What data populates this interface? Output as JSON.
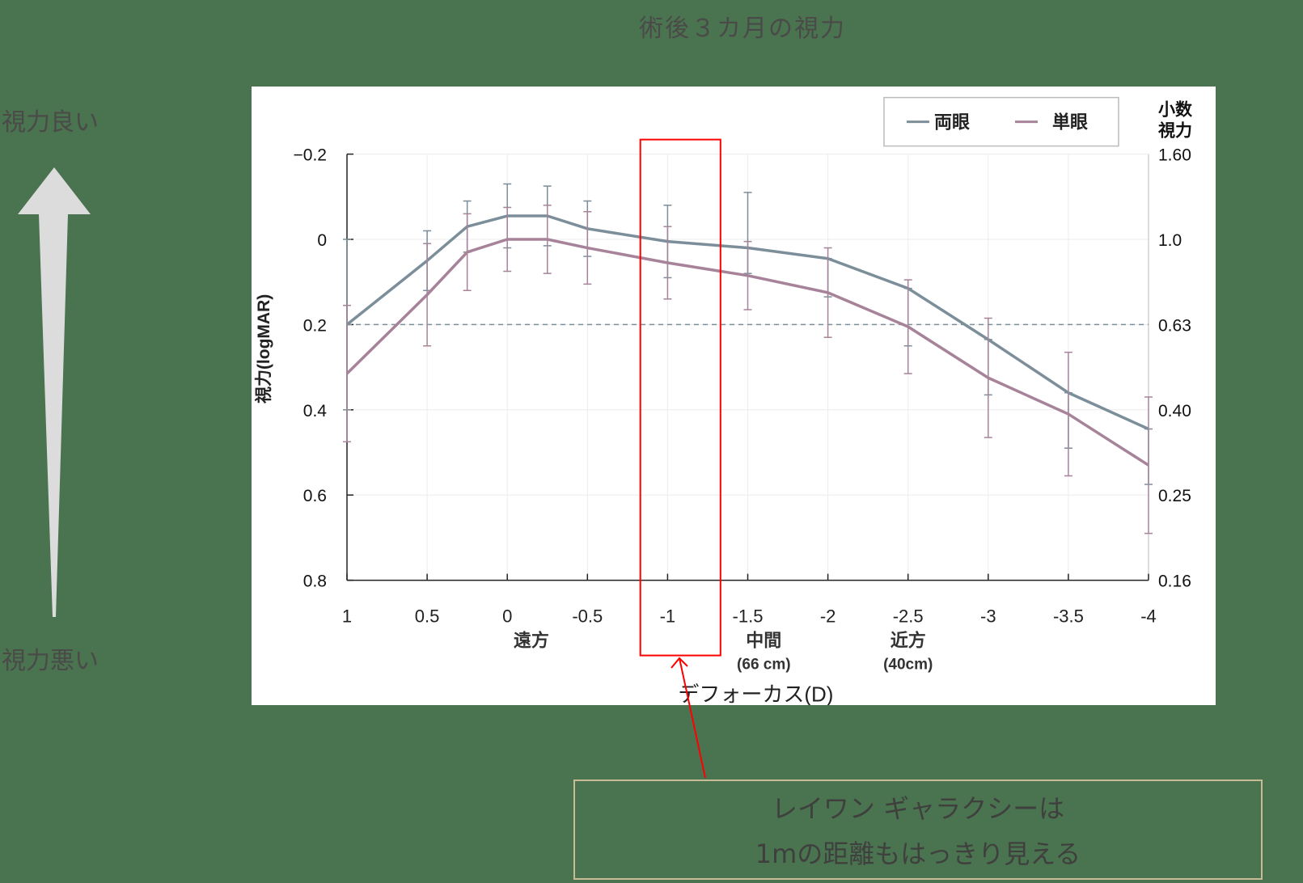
{
  "page": {
    "title": "術後３カ月の視力",
    "side_labels": {
      "top": "視力良い",
      "bottom": "視力悪い"
    },
    "callout_lines": [
      "レイワン ギャラクシーは",
      "1mの距離もはっきり見える"
    ]
  },
  "colors": {
    "background": "#4a7350",
    "binocular": "#7b8e9a",
    "monocular": "#a7839a",
    "highlight": "#ff0000",
    "arrow": "#dcdcdc"
  },
  "chart_data": {
    "type": "line",
    "title": "術後３カ月の視力",
    "xlabel": "デフォーカス(D)",
    "ylabel": "視力(logMAR)",
    "y2label": [
      "小数",
      "視力"
    ],
    "x_ticks": [
      "1",
      "0.5",
      "0",
      "-0.5",
      "-1",
      "-1.5",
      "-2",
      "-2.5",
      "-3",
      "-3.5",
      "-4"
    ],
    "x_ticks_values": [
      1,
      0.5,
      0,
      -0.5,
      -1,
      -1.5,
      -2,
      -2.5,
      -3,
      -3.5,
      -4
    ],
    "x_annotations": [
      {
        "x": -0.15,
        "lines": [
          "遠方"
        ]
      },
      {
        "x": -1.6,
        "lines": [
          "中間",
          "(66 cm)"
        ]
      },
      {
        "x": -2.5,
        "lines": [
          "近方",
          "(40cm)"
        ]
      }
    ],
    "y_ticks": [
      "−0.2",
      "0",
      "0.2",
      "0.4",
      "0.6",
      "0.8"
    ],
    "y_ticks_values": [
      -0.2,
      0,
      0.2,
      0.4,
      0.6,
      0.8
    ],
    "y2_ticks": [
      "1.60",
      "1.0",
      "0.63",
      "0.40",
      "0.25",
      "0.16"
    ],
    "ylim": [
      -0.2,
      0.8
    ],
    "y_inverted": true,
    "xlim": [
      1,
      -4
    ],
    "reference_line": {
      "y": 0.2,
      "style": "dashed"
    },
    "highlight_box": {
      "x_from": -0.83,
      "x_to": -1.33,
      "label": "-1D highlight"
    },
    "legend": {
      "position": "top-right",
      "entries": [
        "両眼",
        "単眼"
      ]
    },
    "grid": true,
    "series": [
      {
        "name": "両眼",
        "x": [
          1,
          0.5,
          0.25,
          0,
          -0.25,
          -0.5,
          -1,
          -1.5,
          -2,
          -2.5,
          -3,
          -3.5,
          -4
        ],
        "values": [
          0.2,
          0.05,
          -0.03,
          -0.055,
          -0.055,
          -0.025,
          0.005,
          0.02,
          0.045,
          0.115,
          0.235,
          0.36,
          0.445
        ],
        "err_low": [
          0.2,
          0.07,
          0.06,
          0.075,
          0.07,
          0.065,
          0.085,
          0.13,
          0.0,
          0.0,
          0.0,
          0.0,
          0.0
        ],
        "err_high": [
          0.2,
          0.07,
          0.06,
          0.075,
          0.07,
          0.065,
          0.085,
          0.06,
          0.09,
          0.135,
          0.13,
          0.13,
          0.13
        ]
      },
      {
        "name": "単眼",
        "x": [
          1,
          0.5,
          0.25,
          0,
          -0.25,
          -0.5,
          -1,
          -1.5,
          -2,
          -2.5,
          -3,
          -3.5,
          -4
        ],
        "values": [
          0.315,
          0.13,
          0.03,
          0.0,
          0.0,
          0.02,
          0.055,
          0.085,
          0.125,
          0.205,
          0.325,
          0.41,
          0.53
        ],
        "err_low": [
          0.16,
          0.12,
          0.09,
          0.075,
          0.08,
          0.085,
          0.085,
          0.08,
          0.105,
          0.11,
          0.14,
          0.145,
          0.16
        ],
        "err_high": [
          0.16,
          0.12,
          0.09,
          0.075,
          0.08,
          0.085,
          0.085,
          0.08,
          0.105,
          0.11,
          0.14,
          0.145,
          0.16
        ]
      }
    ]
  }
}
